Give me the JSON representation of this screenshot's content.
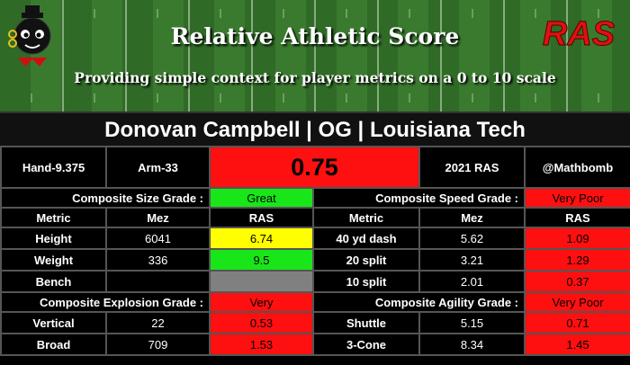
{
  "header": {
    "title": "Relative Athletic Score",
    "subtitle": "Providing simple context for player metrics on a 0 to 10 scale",
    "logo_text": "RAS"
  },
  "player": {
    "name_line": "Donovan Campbell | OG | Louisiana Tech"
  },
  "summary": {
    "hand": "Hand-9.375",
    "arm": "Arm-33",
    "ras_score": "0.75",
    "year_label": "2021 RAS",
    "handle": "@Mathbomb"
  },
  "size_section": {
    "grade_label": "Composite Size Grade :",
    "grade_value": "Great"
  },
  "speed_section": {
    "grade_label": "Composite Speed Grade :",
    "grade_value": "Very Poor"
  },
  "explosion_section": {
    "grade_label": "Composite Explosion Grade :",
    "grade_value": "Very"
  },
  "agility_section": {
    "grade_label": "Composite Agility Grade :",
    "grade_value": "Very Poor"
  },
  "columns": {
    "metric": "Metric",
    "mez": "Mez",
    "ras": "RAS"
  },
  "size_rows": [
    {
      "metric": "Height",
      "mez": "6041",
      "ras": "6.74"
    },
    {
      "metric": "Weight",
      "mez": "336",
      "ras": "9.5"
    },
    {
      "metric": "Bench",
      "mez": "",
      "ras": ""
    }
  ],
  "speed_rows": [
    {
      "metric": "40 yd dash",
      "mez": "5.62",
      "ras": "1.09"
    },
    {
      "metric": "20 split",
      "mez": "3.21",
      "ras": "1.29"
    },
    {
      "metric": "10 split",
      "mez": "2.01",
      "ras": "0.37"
    }
  ],
  "explosion_rows": [
    {
      "metric": "Vertical",
      "mez": "22",
      "ras": "0.53"
    },
    {
      "metric": "Broad",
      "mez": "709",
      "ras": "1.53"
    }
  ],
  "agility_rows": [
    {
      "metric": "Shuttle",
      "mez": "5.15",
      "ras": "0.71"
    },
    {
      "metric": "3-Cone",
      "mez": "8.34",
      "ras": "1.45"
    }
  ],
  "colors": {
    "great": "#19e619",
    "very_poor": "#ff1010",
    "average": "#ffff00",
    "missing": "#808080",
    "field_dark": "#2f6a26",
    "field_light": "#3a7a2f"
  },
  "icons": [
    "mascot-icon",
    "ras-logo-icon"
  ]
}
